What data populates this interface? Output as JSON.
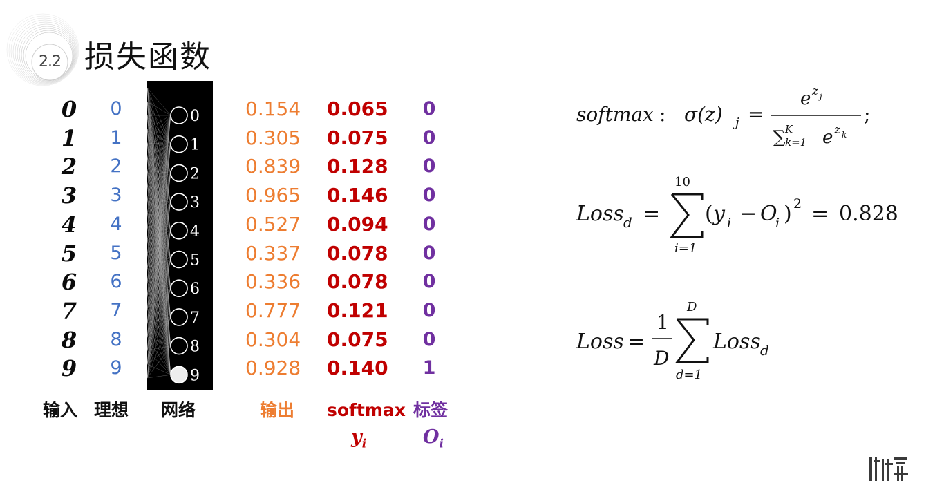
{
  "header": {
    "section_number": "2.2",
    "title": "损失函数"
  },
  "table": {
    "digits": [
      "0",
      "1",
      "2",
      "3",
      "4",
      "5",
      "6",
      "7",
      "8",
      "9"
    ],
    "ideal": [
      "0",
      "1",
      "2",
      "3",
      "4",
      "5",
      "6",
      "7",
      "8",
      "9"
    ],
    "network_nodes": [
      "0",
      "1",
      "2",
      "3",
      "4",
      "5",
      "6",
      "7",
      "8",
      "9"
    ],
    "highlighted_node": 9,
    "output": [
      "0.154",
      "0.305",
      "0.839",
      "0.965",
      "0.527",
      "0.337",
      "0.336",
      "0.777",
      "0.304",
      "0.928"
    ],
    "softmax": [
      "0.065",
      "0.075",
      "0.128",
      "0.146",
      "0.094",
      "0.078",
      "0.078",
      "0.121",
      "0.075",
      "0.140"
    ],
    "label": [
      "0",
      "0",
      "0",
      "0",
      "0",
      "0",
      "0",
      "0",
      "0",
      "1"
    ]
  },
  "captions": {
    "input": "输入",
    "ideal": "理想",
    "network": "网络",
    "output": "输出",
    "softmax": "softmax",
    "label": "标签",
    "softmax_var": "y",
    "softmax_var_sub": "i",
    "label_var": "O",
    "label_var_sub": "i"
  },
  "formulas": {
    "softmax_prefix": "softmax",
    "softmax_sigma": "σ(z)",
    "softmax_sub": "j",
    "softmax_num": "e",
    "softmax_num_sup": "z",
    "softmax_num_sup_sub": "j",
    "softmax_den_sum": "∑",
    "softmax_den_upper": "K",
    "softmax_den_lower": "k=1",
    "softmax_den_e": "e",
    "softmax_den_sup": "z",
    "softmax_den_sup_sub": "k",
    "loss_d_lhs": "Loss",
    "loss_d_sub": "d",
    "loss_d_upper": "10",
    "loss_d_lower": "i=1",
    "loss_d_body_open": "(",
    "loss_d_y": "y",
    "loss_d_y_sub": "i",
    "loss_d_minus": "−",
    "loss_d_o": "O",
    "loss_d_o_sub": "i",
    "loss_d_close": ")",
    "loss_d_pow": "2",
    "loss_d_value": "0.828",
    "loss_lhs": "Loss",
    "loss_frac_num": "1",
    "loss_frac_den": "D",
    "loss_upper": "D",
    "loss_lower": "d=1",
    "loss_body": "Loss",
    "loss_body_sub": "d"
  },
  "colors": {
    "ideal": "#4472c4",
    "output": "#ed7d31",
    "softmax": "#c00000",
    "label": "#7030a0"
  }
}
